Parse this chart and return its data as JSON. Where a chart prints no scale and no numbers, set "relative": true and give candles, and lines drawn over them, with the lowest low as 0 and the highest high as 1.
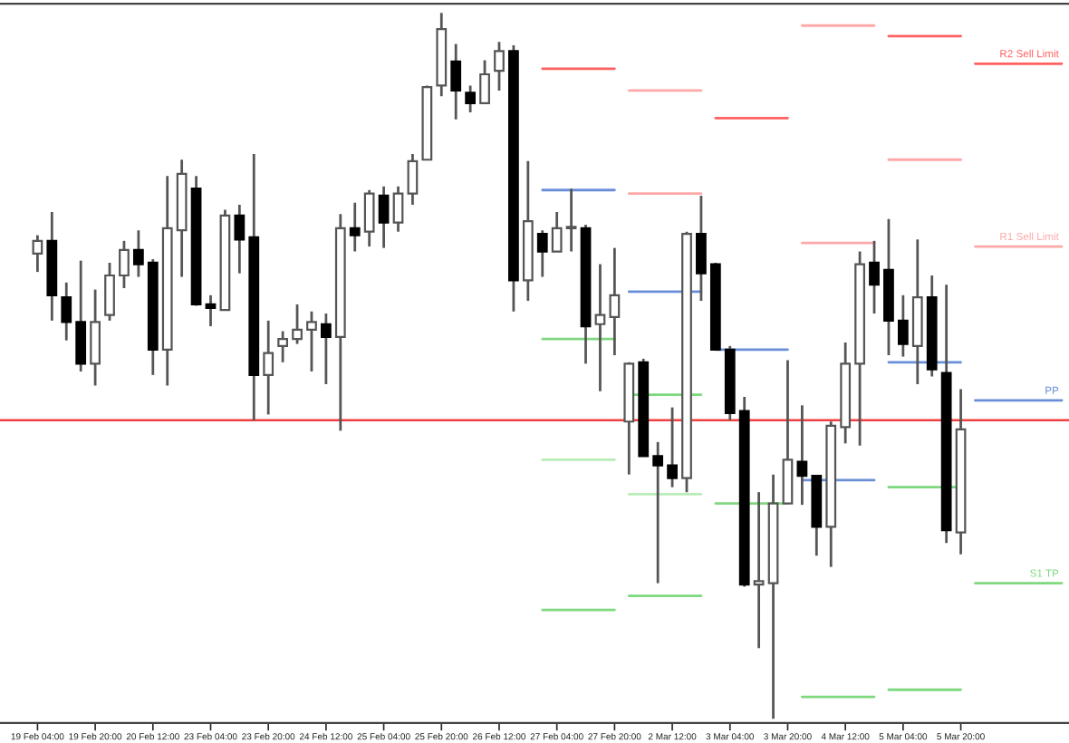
{
  "chart_data": {
    "type": "candlestick",
    "relative": true,
    "categories": [
      "19 Feb 04:00",
      null,
      null,
      null,
      "19 Feb 20:00",
      null,
      null,
      null,
      "20 Feb 12:00",
      null,
      null,
      null,
      "23 Feb 04:00",
      null,
      null,
      null,
      "23 Feb 20:00",
      null,
      null,
      null,
      "24 Feb 12:00",
      null,
      null,
      null,
      "25 Feb 04:00",
      null,
      null,
      null,
      "25 Feb 20:00",
      null,
      null,
      null,
      "26 Feb 12:00",
      null,
      null,
      null,
      "27 Feb 04:00",
      null,
      null,
      null,
      "27 Feb 20:00",
      null,
      null,
      null,
      "2 Mar 12:00",
      null,
      null,
      null,
      "3 Mar 04:00",
      null,
      null,
      null,
      "3 Mar 20:00",
      null,
      null,
      null,
      "4 Mar 12:00",
      null,
      null,
      null,
      "5 Mar 04:00",
      null,
      null,
      null,
      "5 Mar 20:00",
      null,
      null,
      null,
      null,
      null,
      null,
      null
    ],
    "ohlc": [
      [
        0.659,
        0.685,
        0.633,
        0.677
      ],
      [
        0.677,
        0.718,
        0.564,
        0.6
      ],
      [
        0.597,
        0.618,
        0.536,
        0.562
      ],
      [
        0.562,
        0.649,
        0.492,
        0.503
      ],
      [
        0.503,
        0.608,
        0.472,
        0.562
      ],
      [
        0.572,
        0.646,
        0.564,
        0.628
      ],
      [
        0.628,
        0.677,
        0.61,
        0.664
      ],
      [
        0.664,
        0.692,
        0.626,
        0.644
      ],
      [
        0.646,
        0.651,
        0.487,
        0.523
      ],
      [
        0.523,
        0.769,
        0.472,
        0.695
      ],
      [
        0.692,
        0.792,
        0.626,
        0.772
      ],
      [
        0.751,
        0.769,
        0.585,
        0.587
      ],
      [
        0.587,
        0.6,
        0.556,
        0.582
      ],
      [
        0.579,
        0.721,
        0.579,
        0.713
      ],
      [
        0.713,
        0.728,
        0.631,
        0.679
      ],
      [
        0.682,
        0.8,
        0.423,
        0.487
      ],
      [
        0.487,
        0.564,
        0.431,
        0.518
      ],
      [
        0.528,
        0.549,
        0.505,
        0.538
      ],
      [
        0.538,
        0.587,
        0.531,
        0.551
      ],
      [
        0.551,
        0.577,
        0.492,
        0.562
      ],
      [
        0.559,
        0.574,
        0.474,
        0.541
      ],
      [
        0.541,
        0.715,
        0.408,
        0.695
      ],
      [
        0.695,
        0.731,
        0.662,
        0.685
      ],
      [
        0.69,
        0.749,
        0.669,
        0.744
      ],
      [
        0.741,
        0.754,
        0.667,
        0.703
      ],
      [
        0.703,
        0.754,
        0.69,
        0.744
      ],
      [
        0.744,
        0.8,
        0.728,
        0.79
      ],
      [
        0.792,
        0.897,
        0.792,
        0.895
      ],
      [
        0.897,
        1.0,
        0.882,
        0.977
      ],
      [
        0.931,
        0.956,
        0.849,
        0.89
      ],
      [
        0.887,
        0.897,
        0.859,
        0.872
      ],
      [
        0.872,
        0.933,
        0.872,
        0.913
      ],
      [
        0.918,
        0.959,
        0.89,
        0.946
      ],
      [
        0.946,
        0.954,
        0.577,
        0.621
      ],
      [
        0.621,
        0.79,
        0.592,
        0.705
      ],
      [
        0.687,
        0.692,
        0.626,
        0.662
      ],
      [
        0.662,
        0.718,
        0.662,
        0.695
      ],
      [
        0.695,
        0.751,
        0.662,
        0.695
      ],
      [
        0.695,
        0.7,
        0.503,
        0.556
      ],
      [
        0.559,
        0.644,
        0.464,
        0.572
      ],
      [
        0.569,
        0.667,
        0.515,
        0.6
      ],
      [
        0.421,
        0.505,
        0.346,
        0.503
      ],
      [
        0.505,
        0.51,
        0.372,
        0.372
      ],
      [
        0.372,
        0.392,
        0.192,
        0.359
      ],
      [
        0.359,
        0.441,
        0.328,
        0.341
      ],
      [
        0.341,
        0.69,
        0.321,
        0.687
      ],
      [
        0.687,
        0.741,
        0.592,
        0.631
      ],
      [
        0.644,
        0.646,
        0.523,
        0.523
      ],
      [
        0.523,
        0.528,
        0.423,
        0.433
      ],
      [
        0.436,
        0.456,
        0.187,
        0.19
      ],
      [
        0.19,
        0.321,
        0.1,
        0.195
      ],
      [
        0.192,
        0.346,
        0.0,
        0.305
      ],
      [
        0.305,
        0.508,
        0.305,
        0.367
      ],
      [
        0.364,
        0.444,
        0.303,
        0.344
      ],
      [
        0.344,
        0.344,
        0.231,
        0.272
      ],
      [
        0.272,
        0.421,
        0.215,
        0.415
      ],
      [
        0.413,
        0.533,
        0.39,
        0.503
      ],
      [
        0.503,
        0.662,
        0.387,
        0.644
      ],
      [
        0.646,
        0.677,
        0.574,
        0.615
      ],
      [
        0.636,
        0.708,
        0.515,
        0.564
      ],
      [
        0.564,
        0.6,
        0.513,
        0.531
      ],
      [
        0.528,
        0.679,
        0.474,
        0.597
      ],
      [
        0.597,
        0.628,
        0.485,
        0.495
      ],
      [
        0.49,
        0.615,
        0.249,
        0.267
      ],
      [
        0.264,
        0.467,
        0.233,
        0.41
      ],
      null,
      null,
      null,
      null,
      null,
      null,
      null
    ],
    "series": [
      {
        "type": "line",
        "color": "#ff6060",
        "values": [
          null,
          null,
          null,
          null,
          null,
          null,
          null,
          null,
          null,
          null,
          null,
          null,
          null,
          null,
          null,
          null,
          null,
          null,
          null,
          null,
          null,
          null,
          null,
          null,
          null,
          null,
          null,
          null,
          null,
          null,
          null,
          null,
          null,
          null,
          null,
          0.921,
          0.921,
          0.921,
          0.921,
          0.921,
          0.921,
          null,
          null,
          null,
          null,
          null,
          null,
          0.851,
          0.851,
          0.851,
          0.851,
          0.851,
          0.851,
          null,
          null,
          null,
          null,
          null,
          null,
          0.967,
          0.967,
          0.967,
          0.967,
          0.967,
          0.967,
          0.928,
          0.928,
          0.928,
          0.928,
          0.928,
          0.928,
          0.928
        ]
      },
      {
        "type": "line",
        "color": "#ffa8a8",
        "values": [
          null,
          null,
          null,
          null,
          null,
          null,
          null,
          null,
          null,
          null,
          null,
          null,
          null,
          null,
          null,
          null,
          null,
          null,
          null,
          null,
          null,
          null,
          null,
          null,
          null,
          null,
          null,
          null,
          null,
          null,
          null,
          null,
          null,
          null,
          null,
          null,
          null,
          null,
          null,
          null,
          null,
          0.89,
          0.89,
          0.89,
          0.89,
          0.89,
          0.89,
          null,
          null,
          null,
          null,
          null,
          null,
          0.982,
          0.982,
          0.982,
          0.982,
          0.982,
          0.982,
          0.792,
          0.792,
          0.792,
          0.792,
          0.792,
          0.792,
          0.669,
          0.669,
          0.669,
          0.669,
          0.669,
          0.669,
          0.669
        ]
      },
      {
        "type": "line",
        "color": "#ffa8a8",
        "values": [
          null,
          null,
          null,
          null,
          null,
          null,
          null,
          null,
          null,
          null,
          null,
          null,
          null,
          null,
          null,
          null,
          null,
          null,
          null,
          null,
          null,
          null,
          null,
          null,
          null,
          null,
          null,
          null,
          null,
          null,
          null,
          null,
          null,
          null,
          null,
          null,
          null,
          null,
          null,
          null,
          null,
          0.744,
          0.744,
          0.744,
          0.744,
          0.744,
          0.744,
          null,
          null,
          null,
          null,
          null,
          null,
          0.674,
          0.674,
          0.674,
          0.674,
          0.674,
          0.674,
          null,
          null,
          null,
          null,
          null,
          null,
          null,
          null,
          null,
          null,
          null,
          null,
          null
        ]
      },
      {
        "type": "line",
        "color": "#6a8fd8",
        "values": [
          null,
          null,
          null,
          null,
          null,
          null,
          null,
          null,
          null,
          null,
          null,
          null,
          null,
          null,
          null,
          null,
          null,
          null,
          null,
          null,
          null,
          null,
          null,
          null,
          null,
          null,
          null,
          null,
          null,
          null,
          null,
          null,
          null,
          null,
          null,
          0.749,
          0.749,
          0.749,
          0.749,
          0.749,
          0.749,
          0.605,
          0.605,
          0.605,
          0.605,
          0.605,
          0.605,
          0.523,
          0.523,
          0.523,
          0.523,
          0.523,
          0.523,
          0.338,
          0.338,
          0.338,
          0.338,
          0.338,
          0.338,
          0.505,
          0.505,
          0.505,
          0.505,
          0.505,
          0.505,
          0.451,
          0.451,
          0.451,
          0.451,
          0.451,
          0.451,
          0.451
        ]
      },
      {
        "type": "line",
        "color": "#7fd87f",
        "values": [
          null,
          null,
          null,
          null,
          null,
          null,
          null,
          null,
          null,
          null,
          null,
          null,
          null,
          null,
          null,
          null,
          null,
          null,
          null,
          null,
          null,
          null,
          null,
          null,
          null,
          null,
          null,
          null,
          null,
          null,
          null,
          null,
          null,
          null,
          null,
          0.538,
          0.538,
          0.538,
          0.538,
          0.538,
          0.538,
          0.459,
          0.459,
          0.459,
          0.459,
          0.459,
          0.459,
          0.305,
          0.305,
          0.305,
          0.305,
          0.305,
          0.305,
          0.031,
          0.031,
          0.031,
          0.031,
          0.031,
          0.031,
          0.328,
          0.328,
          0.328,
          0.328,
          0.328,
          0.328,
          0.192,
          0.192,
          0.192,
          0.192,
          0.192,
          0.192,
          0.192
        ]
      },
      {
        "type": "line",
        "color": "#b8ecb8",
        "values": [
          null,
          null,
          null,
          null,
          null,
          null,
          null,
          null,
          null,
          null,
          null,
          null,
          null,
          null,
          null,
          null,
          null,
          null,
          null,
          null,
          null,
          null,
          null,
          null,
          null,
          null,
          null,
          null,
          null,
          null,
          null,
          null,
          null,
          null,
          null,
          0.367,
          0.367,
          0.367,
          0.367,
          0.367,
          0.367,
          0.318,
          0.318,
          0.318,
          0.318,
          0.318,
          0.318,
          null,
          null,
          null,
          null,
          null,
          null,
          null,
          null,
          null,
          null,
          null,
          null,
          null,
          null,
          null,
          null,
          null,
          null,
          null,
          null,
          null,
          null,
          null,
          null,
          null
        ]
      },
      {
        "type": "line",
        "color": "#7fd87f",
        "values": [
          null,
          null,
          null,
          null,
          null,
          null,
          null,
          null,
          null,
          null,
          null,
          null,
          null,
          null,
          null,
          null,
          null,
          null,
          null,
          null,
          null,
          null,
          null,
          null,
          null,
          null,
          null,
          null,
          null,
          null,
          null,
          null,
          null,
          null,
          null,
          0.154,
          0.154,
          0.154,
          0.154,
          0.154,
          0.154,
          0.174,
          0.174,
          0.174,
          0.174,
          0.174,
          0.174,
          null,
          null,
          null,
          null,
          null,
          null,
          null,
          null,
          null,
          null,
          null,
          null,
          0.041,
          0.041,
          0.041,
          0.041,
          0.041,
          0.041,
          null,
          null,
          null,
          null,
          null,
          null,
          null
        ]
      }
    ],
    "ref_lines": [
      {
        "axis": "y",
        "value": 0.423,
        "color": "#f04040"
      }
    ],
    "annotations": [
      {
        "text": "R2 Sell Limit",
        "y": 0.928
      },
      {
        "text": "R1 Sell Limit",
        "y": 0.669
      },
      {
        "text": "PP",
        "y": 0.451
      },
      {
        "text": "S1 TP",
        "y": 0.192
      }
    ]
  }
}
